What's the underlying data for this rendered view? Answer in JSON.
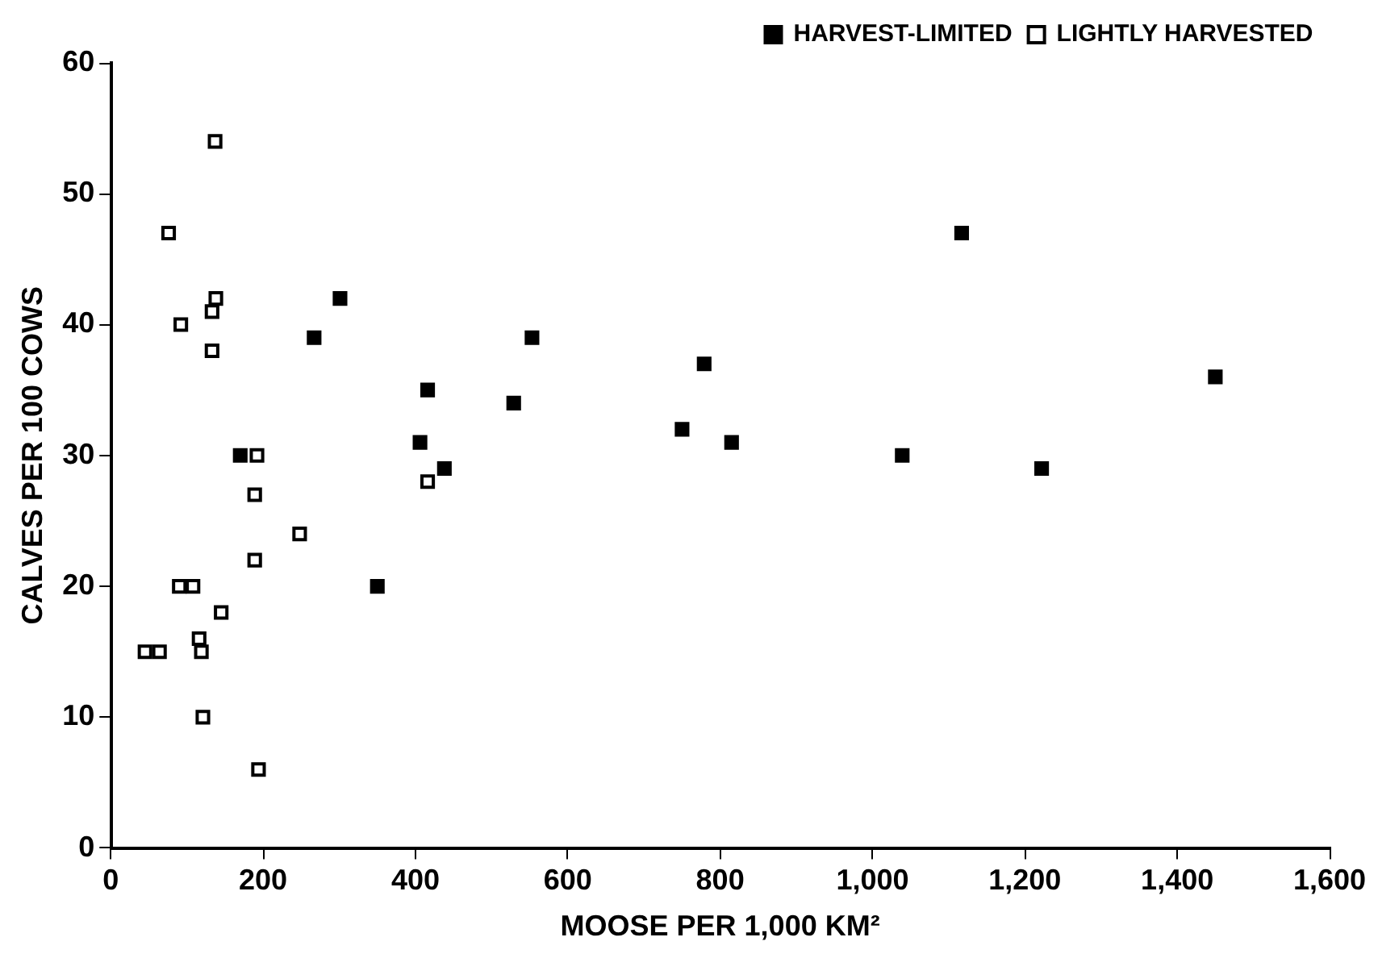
{
  "chart_data": {
    "type": "scatter",
    "xlabel": "MOOSE PER 1,000 KM²",
    "ylabel": "CALVES PER 100 COWS",
    "xlim": [
      0,
      1600
    ],
    "xticks": [
      {
        "value": 0,
        "label": "0"
      },
      {
        "value": 200,
        "label": "200"
      },
      {
        "value": 400,
        "label": "400"
      },
      {
        "value": 600,
        "label": "600"
      },
      {
        "value": 800,
        "label": "800"
      },
      {
        "value": 1000,
        "label": "1,000"
      },
      {
        "value": 1200,
        "label": "1,200"
      },
      {
        "value": 1400,
        "label": "1,400"
      },
      {
        "value": 1600,
        "label": "1,600"
      }
    ],
    "ylim": [
      0,
      60
    ],
    "yticks": [
      0,
      10,
      20,
      30,
      40,
      50,
      60
    ],
    "grid": false,
    "legend": "top right",
    "marker": "square",
    "series": [
      {
        "name": "HARVEST-LIMITED",
        "color": "#000000",
        "x": [
          170,
          267,
          301,
          350,
          406,
          416,
          438,
          529,
          553,
          750,
          779,
          815,
          1039,
          1117,
          1222,
          1450
        ],
        "values": [
          30,
          39,
          42,
          20,
          31,
          35,
          29,
          34,
          39,
          32,
          37,
          31,
          30,
          47,
          29,
          36
        ]
      },
      {
        "name": "LIGHTLY HARVESTED",
        "color": "#ffffff",
        "x": [
          137,
          76,
          138,
          133,
          92,
          133,
          192,
          416,
          189,
          248,
          189,
          90,
          108,
          145,
          116,
          119,
          45,
          64,
          121,
          194
        ],
        "values": [
          54,
          47,
          42,
          41,
          40,
          38,
          30,
          28,
          27,
          24,
          22,
          20,
          20,
          18,
          16,
          15,
          15,
          15,
          10,
          6
        ]
      }
    ]
  }
}
